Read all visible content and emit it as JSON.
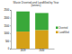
{
  "chart_data": {
    "type": "bar",
    "title": "Waste Diverted and Landfilled by Year",
    "subtitle": "(tonnes)",
    "categories": [
      "2019",
      "2020"
    ],
    "series": [
      {
        "name": "Landfilled",
        "color": "#d4a017",
        "values": [
          1100,
          1200
        ]
      },
      {
        "name": "Diverted",
        "color": "#3aa83a",
        "values": [
          1300,
          1100
        ]
      }
    ],
    "stacked": true,
    "ylim": [
      0,
      2500
    ],
    "yticks": [
      0,
      500,
      1000,
      1500,
      2000,
      2500
    ],
    "grid": false,
    "legend": "right"
  }
}
